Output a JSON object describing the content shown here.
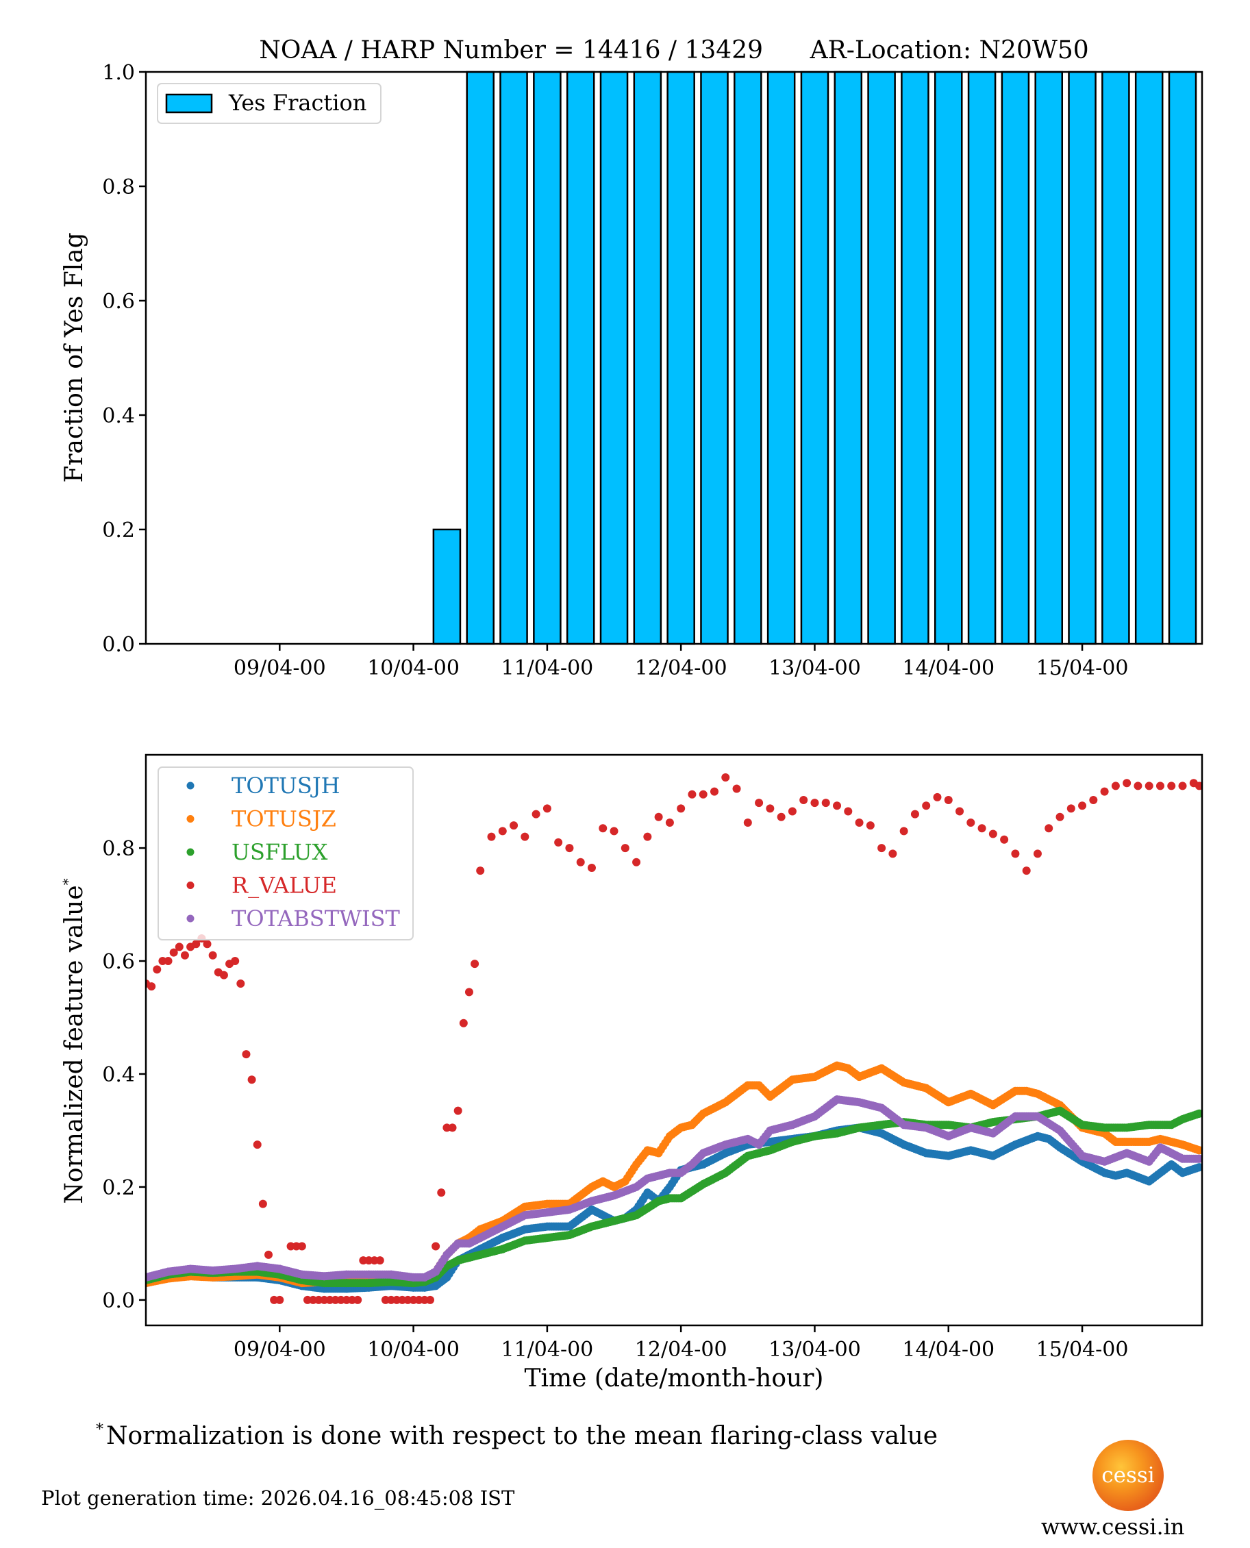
{
  "figure": {
    "footnote_mark": "*",
    "footnote": "Normalization is done with respect to the mean flaring-class value",
    "generation_time": "Plot generation time: 2026.04.16_08:45:08 IST",
    "logo_text": "cessi",
    "website": "www.cessi.in"
  },
  "chart_data": [
    {
      "type": "bar",
      "title": "NOAA / HARP Number = 14416 / 13429      AR-Location: N20W50",
      "xlabel": "",
      "ylabel": "Fraction of Yes Flag",
      "x_units": "hours since 08/04-00",
      "xlim": [
        0,
        189.5
      ],
      "ylim": [
        0,
        1.0
      ],
      "yticks": [
        0.0,
        0.2,
        0.4,
        0.6,
        0.8,
        1.0
      ],
      "ytick_labels": [
        "0.0",
        "0.2",
        "0.4",
        "0.6",
        "0.8",
        "1.0"
      ],
      "xticks": [
        24,
        48,
        72,
        96,
        120,
        144,
        168
      ],
      "xtick_labels": [
        "09/04-00",
        "10/04-00",
        "11/04-00",
        "12/04-00",
        "13/04-00",
        "14/04-00",
        "15/04-00"
      ],
      "bar_width_hours": 4.8,
      "legend": {
        "entries": [
          "Yes Fraction"
        ],
        "position": "top-left"
      },
      "colors": {
        "bar": "#00bfff",
        "edge": "#000000"
      },
      "series": [
        {
          "name": "Yes Fraction",
          "x": [
            54,
            60,
            66,
            72,
            78,
            84,
            90,
            96,
            102,
            108,
            114,
            120,
            126,
            132,
            138,
            144,
            150,
            156,
            162,
            168,
            174,
            180,
            186
          ],
          "values": [
            0.2,
            1,
            1,
            1,
            1,
            1,
            1,
            1,
            1,
            1,
            1,
            1,
            1,
            1,
            1,
            1,
            1,
            1,
            1,
            1,
            1,
            1,
            1
          ]
        }
      ],
      "grid": false
    },
    {
      "type": "scatter",
      "title": "",
      "xlabel": "Time (date/month-hour)",
      "ylabel": "Normalized feature value",
      "ylabel_mark": "*",
      "x_units": "hours since 08/04-00",
      "xlim": [
        0,
        189.5
      ],
      "ylim": [
        -0.045,
        0.965
      ],
      "yticks": [
        0.0,
        0.2,
        0.4,
        0.6,
        0.8
      ],
      "ytick_labels": [
        "0.0",
        "0.2",
        "0.4",
        "0.6",
        "0.8"
      ],
      "xticks": [
        24,
        48,
        72,
        96,
        120,
        144,
        168
      ],
      "xtick_labels": [
        "09/04-00",
        "10/04-00",
        "11/04-00",
        "12/04-00",
        "13/04-00",
        "14/04-00",
        "15/04-00"
      ],
      "legend": {
        "position": "top-left",
        "entries": [
          "TOTUSJH",
          "TOTUSJZ",
          "USFLUX",
          "R_VALUE",
          "TOTABSTWIST"
        ]
      },
      "grid": false,
      "series": [
        {
          "name": "TOTUSJH",
          "color": "#1f77b4",
          "x": [
            0,
            4,
            8,
            12,
            16,
            20,
            24,
            28,
            32,
            36,
            40,
            44,
            48,
            50,
            52,
            54,
            56,
            58,
            60,
            64,
            68,
            72,
            76,
            80,
            82,
            84,
            86,
            88,
            90,
            92,
            94,
            96,
            98,
            100,
            104,
            108,
            112,
            116,
            120,
            124,
            128,
            132,
            136,
            140,
            144,
            148,
            152,
            156,
            160,
            162,
            164,
            168,
            172,
            174,
            176,
            180,
            182,
            184,
            186,
            189
          ],
          "values": [
            0.03,
            0.04,
            0.045,
            0.04,
            0.04,
            0.04,
            0.035,
            0.025,
            0.02,
            0.02,
            0.022,
            0.025,
            0.022,
            0.022,
            0.025,
            0.04,
            0.07,
            0.08,
            0.09,
            0.11,
            0.125,
            0.13,
            0.13,
            0.16,
            0.15,
            0.14,
            0.145,
            0.16,
            0.19,
            0.175,
            0.2,
            0.23,
            0.235,
            0.24,
            0.26,
            0.275,
            0.28,
            0.285,
            0.29,
            0.3,
            0.305,
            0.295,
            0.275,
            0.26,
            0.255,
            0.265,
            0.255,
            0.275,
            0.29,
            0.285,
            0.27,
            0.245,
            0.225,
            0.22,
            0.225,
            0.21,
            0.225,
            0.24,
            0.225,
            0.235
          ]
        },
        {
          "name": "TOTUSJZ",
          "color": "#ff7f0e",
          "x": [
            0,
            4,
            8,
            12,
            16,
            20,
            24,
            28,
            32,
            36,
            40,
            44,
            48,
            50,
            52,
            54,
            56,
            58,
            60,
            64,
            68,
            72,
            76,
            80,
            82,
            84,
            86,
            88,
            90,
            92,
            94,
            96,
            98,
            100,
            104,
            108,
            110,
            112,
            116,
            120,
            124,
            126,
            128,
            132,
            136,
            140,
            144,
            148,
            152,
            156,
            158,
            160,
            164,
            168,
            172,
            174,
            176,
            180,
            182,
            184,
            186,
            189
          ],
          "values": [
            0.03,
            0.038,
            0.042,
            0.04,
            0.042,
            0.045,
            0.04,
            0.03,
            0.032,
            0.035,
            0.038,
            0.035,
            0.035,
            0.036,
            0.05,
            0.08,
            0.1,
            0.11,
            0.125,
            0.14,
            0.165,
            0.17,
            0.17,
            0.2,
            0.21,
            0.2,
            0.21,
            0.24,
            0.265,
            0.26,
            0.29,
            0.305,
            0.31,
            0.33,
            0.35,
            0.38,
            0.38,
            0.36,
            0.39,
            0.395,
            0.415,
            0.41,
            0.395,
            0.41,
            0.385,
            0.375,
            0.35,
            0.365,
            0.345,
            0.37,
            0.37,
            0.365,
            0.345,
            0.305,
            0.295,
            0.28,
            0.28,
            0.28,
            0.285,
            0.28,
            0.275,
            0.265
          ]
        },
        {
          "name": "USFLUX",
          "color": "#2ca02c",
          "x": [
            0,
            4,
            8,
            12,
            16,
            20,
            24,
            28,
            32,
            36,
            40,
            44,
            48,
            50,
            52,
            54,
            56,
            58,
            60,
            64,
            68,
            72,
            76,
            80,
            84,
            88,
            92,
            94,
            96,
            100,
            104,
            108,
            112,
            116,
            120,
            124,
            128,
            132,
            136,
            140,
            144,
            148,
            152,
            156,
            160,
            164,
            168,
            172,
            176,
            180,
            184,
            186,
            189
          ],
          "values": [
            0.035,
            0.045,
            0.05,
            0.048,
            0.05,
            0.05,
            0.045,
            0.035,
            0.03,
            0.03,
            0.03,
            0.032,
            0.03,
            0.032,
            0.04,
            0.06,
            0.07,
            0.075,
            0.08,
            0.09,
            0.105,
            0.11,
            0.115,
            0.13,
            0.14,
            0.15,
            0.175,
            0.18,
            0.18,
            0.205,
            0.225,
            0.255,
            0.265,
            0.28,
            0.29,
            0.295,
            0.305,
            0.31,
            0.315,
            0.31,
            0.31,
            0.305,
            0.315,
            0.32,
            0.325,
            0.335,
            0.31,
            0.305,
            0.305,
            0.31,
            0.31,
            0.32,
            0.33
          ]
        },
        {
          "name": "R_VALUE",
          "color": "#d62728",
          "x": [
            0,
            1,
            2,
            3,
            4,
            5,
            6,
            7,
            8,
            9,
            10,
            11,
            12,
            13,
            14,
            15,
            16,
            17,
            18,
            19,
            20,
            21,
            22,
            23,
            24,
            26,
            27,
            28,
            29,
            30,
            31,
            32,
            33,
            34,
            35,
            36,
            37,
            38,
            39,
            40,
            41,
            42,
            43,
            44,
            45,
            46,
            47,
            48,
            49,
            50,
            51,
            52,
            53,
            54,
            55,
            56,
            57,
            58,
            59,
            60,
            62,
            64,
            66,
            68,
            70,
            72,
            74,
            76,
            78,
            80,
            82,
            84,
            86,
            88,
            90,
            92,
            94,
            96,
            98,
            100,
            102,
            104,
            106,
            108,
            110,
            112,
            114,
            116,
            118,
            120,
            122,
            124,
            126,
            128,
            130,
            132,
            134,
            136,
            138,
            140,
            142,
            144,
            146,
            148,
            150,
            152,
            154,
            156,
            158,
            160,
            162,
            164,
            166,
            168,
            170,
            172,
            174,
            176,
            178,
            180,
            182,
            184,
            186,
            188,
            189
          ],
          "values": [
            0.56,
            0.555,
            0.585,
            0.6,
            0.6,
            0.615,
            0.625,
            0.61,
            0.625,
            0.63,
            0.64,
            0.63,
            0.61,
            0.58,
            0.575,
            0.595,
            0.6,
            0.56,
            0.435,
            0.39,
            0.275,
            0.17,
            0.08,
            0.0,
            0.0,
            0.095,
            0.095,
            0.095,
            0.0,
            0.0,
            0.0,
            0.0,
            0.0,
            0.0,
            0.0,
            0.0,
            0.0,
            0.0,
            0.07,
            0.07,
            0.07,
            0.07,
            0.0,
            0.0,
            0.0,
            0.0,
            0.0,
            0.0,
            0.0,
            0.0,
            0.0,
            0.095,
            0.19,
            0.305,
            0.305,
            0.335,
            0.49,
            0.545,
            0.595,
            0.76,
            0.82,
            0.83,
            0.84,
            0.82,
            0.86,
            0.87,
            0.81,
            0.8,
            0.775,
            0.765,
            0.835,
            0.83,
            0.8,
            0.775,
            0.82,
            0.855,
            0.845,
            0.87,
            0.895,
            0.895,
            0.9,
            0.925,
            0.905,
            0.845,
            0.88,
            0.87,
            0.855,
            0.865,
            0.885,
            0.88,
            0.88,
            0.875,
            0.865,
            0.845,
            0.84,
            0.8,
            0.79,
            0.83,
            0.86,
            0.875,
            0.89,
            0.885,
            0.865,
            0.845,
            0.835,
            0.825,
            0.815,
            0.79,
            0.76,
            0.79,
            0.835,
            0.855,
            0.87,
            0.875,
            0.885,
            0.9,
            0.91,
            0.915,
            0.91,
            0.91,
            0.91,
            0.91,
            0.91,
            0.915,
            0.91
          ]
        },
        {
          "name": "TOTABSTWIST",
          "color": "#9467bd",
          "x": [
            0,
            4,
            8,
            12,
            16,
            20,
            24,
            28,
            32,
            36,
            40,
            44,
            48,
            50,
            52,
            54,
            56,
            58,
            60,
            64,
            68,
            72,
            76,
            80,
            84,
            88,
            90,
            92,
            94,
            96,
            98,
            100,
            104,
            108,
            110,
            112,
            116,
            120,
            124,
            128,
            132,
            136,
            140,
            144,
            148,
            152,
            156,
            160,
            164,
            168,
            172,
            176,
            180,
            182,
            184,
            186,
            189
          ],
          "values": [
            0.04,
            0.05,
            0.055,
            0.052,
            0.055,
            0.06,
            0.055,
            0.045,
            0.042,
            0.045,
            0.045,
            0.045,
            0.04,
            0.04,
            0.05,
            0.08,
            0.1,
            0.1,
            0.11,
            0.13,
            0.15,
            0.155,
            0.16,
            0.175,
            0.185,
            0.2,
            0.215,
            0.22,
            0.225,
            0.225,
            0.24,
            0.26,
            0.275,
            0.285,
            0.275,
            0.3,
            0.31,
            0.325,
            0.355,
            0.35,
            0.34,
            0.31,
            0.305,
            0.29,
            0.305,
            0.295,
            0.325,
            0.325,
            0.3,
            0.255,
            0.245,
            0.26,
            0.245,
            0.27,
            0.26,
            0.25,
            0.25
          ]
        }
      ]
    }
  ]
}
